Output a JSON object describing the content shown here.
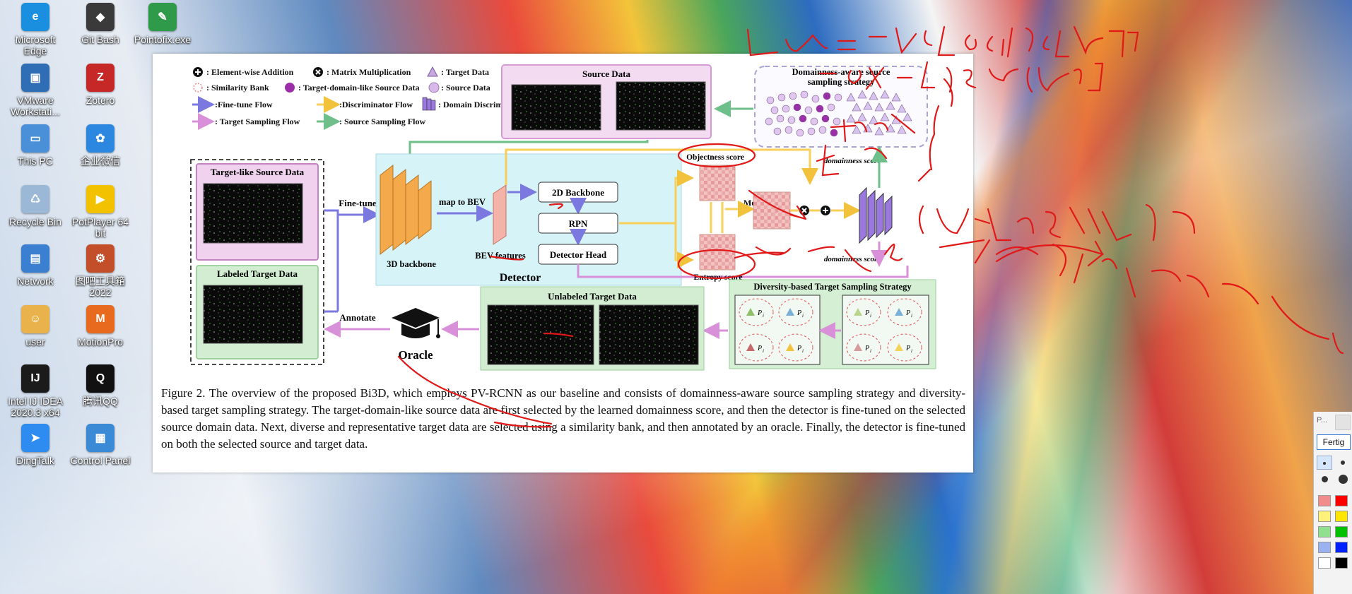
{
  "desktop": {
    "icons": [
      {
        "name": "Microsoft Edge",
        "glyph": "e",
        "color": "#1a8fe0"
      },
      {
        "name": "Git Bash",
        "glyph": "◆",
        "color": "#3a3a3a"
      },
      {
        "name": "Pointofix.exe",
        "glyph": "✎",
        "color": "#2f9a4a"
      },
      {
        "name": "VMware Workstati...",
        "glyph": "▣",
        "color": "#2f6db5"
      },
      {
        "name": "Zotero",
        "glyph": "Z",
        "color": "#c62828"
      },
      {
        "name": "This PC",
        "glyph": "▭",
        "color": "#4a90d9"
      },
      {
        "name": "企业微信",
        "glyph": "✿",
        "color": "#2b87e0"
      },
      {
        "name": "Recycle Bin",
        "glyph": "♺",
        "color": "#9bb8d6"
      },
      {
        "name": "PotPlayer 64 bit",
        "glyph": "▶",
        "color": "#f2c200"
      },
      {
        "name": "Network",
        "glyph": "▤",
        "color": "#3a7fd0"
      },
      {
        "name": "图吧工具箱 2022",
        "glyph": "⚙",
        "color": "#c24e2a"
      },
      {
        "name": "user",
        "glyph": "☺",
        "color": "#e9b24a"
      },
      {
        "name": "MotionPro",
        "glyph": "M",
        "color": "#e86a1f"
      },
      {
        "name": "Intel IJ IDEA 2020.3 x64",
        "glyph": "IJ",
        "color": "#1b1b1b"
      },
      {
        "name": "腾讯QQ",
        "glyph": "Q",
        "color": "#111111"
      },
      {
        "name": "DingTalk",
        "glyph": "➤",
        "color": "#2e8bf0"
      },
      {
        "name": "Control Panel",
        "glyph": "▦",
        "color": "#3a8ad6"
      }
    ]
  },
  "legend": {
    "elementwise": ": Element-wise Addition",
    "matrix": ": Matrix Multiplication",
    "target_data": ": Target Data",
    "similarity_bank": ": Similarity Bank",
    "tdl_source": ": Target-domain-like Source Data",
    "source_data": ": Source Data",
    "finetune_flow": ":Fine-tune Flow",
    "discriminator_flow": ":Discriminator Flow",
    "domain_disc": ": Domain Discriminator",
    "target_sampling": ": Target Sampling Flow",
    "source_sampling": ": Source Sampling Flow"
  },
  "diagram": {
    "source_data": "Source Data",
    "domainness_title_1": "Domainness-aware source",
    "domainness_title_2": "sampling strategy",
    "target_like": "Target-like Source Data",
    "labeled_target": "Labeled Target Data",
    "fine_tune": "Fine-tune",
    "backbone3d": "3D backbone",
    "map_to_bev": "map to BEV",
    "bev_features": "BEV features",
    "backbone2d": "2D Backbone",
    "rpn": "RPN",
    "detector_head": "Detector Head",
    "detector": "Detector",
    "objectness": "Objectness score",
    "entropy": "Entropy score",
    "mean": "Mean",
    "domainness_score_1": "domainness score",
    "domainness_score_2": "domainness score",
    "diversity_title": "Diversity-based Target Sampling Strategy",
    "unlabeled_target": "Unlabeled Target Data",
    "annotate": "Annotate",
    "oracle": "Oracle",
    "p_label": "P",
    "p_sub": "i"
  },
  "caption": "Figure 2. The overview of the proposed Bi3D, which employs PV-RCNN as our baseline and consists of domainness-aware source sampling strategy and diversity-based target sampling strategy. The target-domain-like source data are first selected by the learned domainness score, and then the detector is fine-tuned on the selected source domain data. Next, diverse and representative target data are selected using a similarity bank, and then annotated by an oracle. Finally, the detector is fine-tuned on both the selected source and target data.",
  "toolpanel": {
    "field": "P...",
    "done_button": "Fertig",
    "colors": [
      "#f28b8b",
      "#ff0000",
      "#fff27a",
      "#ffe600",
      "#8fe08f",
      "#00c000",
      "#9bb2f0",
      "#0020ff",
      "#ffffff",
      "#000000"
    ]
  },
  "colors": {
    "finetune": "#7b78e0",
    "discriminator": "#f7cf5a",
    "target_sampling": "#d890d8",
    "source_sampling": "#6fbf8a",
    "pen": "#e01818"
  }
}
